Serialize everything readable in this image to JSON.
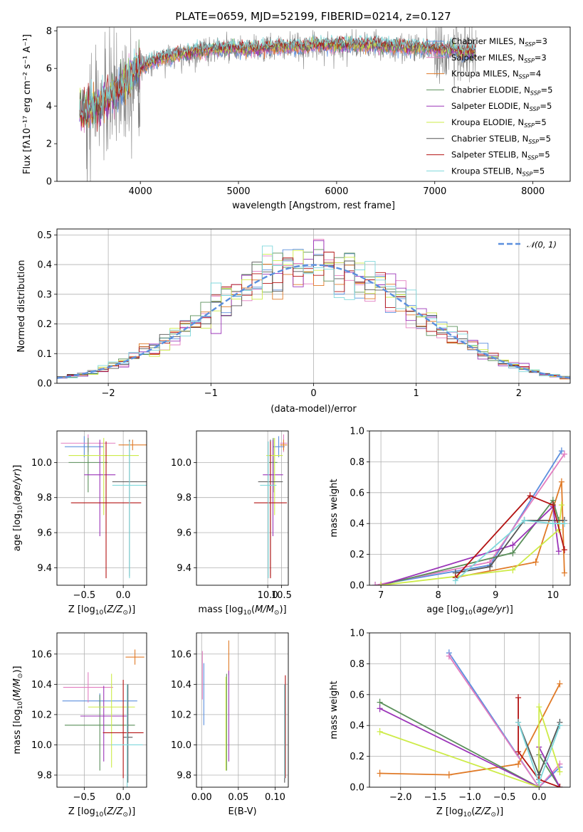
{
  "figure": {
    "title": "PLATE=0659, MJD=52199, FIBERID=0214, z=0.127"
  },
  "colors": {
    "chabrier_miles": "#5b8fde",
    "salpeter_miles": "#e27dc0",
    "kroupa_miles": "#e07a27",
    "chabrier_elodie": "#5a8f5a",
    "salpeter_elodie": "#9b35b8",
    "kroupa_elodie": "#cdeb47",
    "chabrier_stelib": "#555555",
    "salpeter_stelib": "#b31313",
    "kroupa_stelib": "#7fd8dc",
    "data_spectrum": "#808080",
    "normal_curve": "#5b8fde"
  },
  "chart_data": [
    {
      "id": "spectrum",
      "type": "line",
      "title": "PLATE=0659, MJD=52199, FIBERID=0214, z=0.127",
      "xlabel": "wavelength [Angstrom, rest frame]",
      "ylabel": "Flux [fλ10⁻¹⁷ erg cm⁻² s⁻¹ A⁻¹]",
      "xlim": [
        3150,
        8380
      ],
      "ylim": [
        0,
        8.2
      ],
      "xticks": [
        4000,
        5000,
        6000,
        7000,
        8000
      ],
      "yticks": [
        0,
        2,
        4,
        6,
        8
      ],
      "legend_position": "top-right",
      "legend": [
        {
          "label": "Chabrier MILES, N",
          "sub": "SSP",
          "eq": "=3"
        },
        {
          "label": "Salpeter MILES, N",
          "sub": "SSP",
          "eq": "=3"
        },
        {
          "label": "Kroupa MILES, N",
          "sub": "SSP",
          "eq": "=4"
        },
        {
          "label": "Chabrier ELODIE, N",
          "sub": "SSP",
          "eq": "=5"
        },
        {
          "label": "Salpeter ELODIE, N",
          "sub": "SSP",
          "eq": "=5"
        },
        {
          "label": "Kroupa ELODIE, N",
          "sub": "SSP",
          "eq": "=5"
        },
        {
          "label": "Chabrier STELIB, N",
          "sub": "SSP",
          "eq": "=5"
        },
        {
          "label": "Salpeter STELIB, N",
          "sub": "SSP",
          "eq": "=5"
        },
        {
          "label": "Kroupa STELIB, N",
          "sub": "SSP",
          "eq": "=5"
        }
      ],
      "continuum": {
        "x": [
          3380,
          3500,
          3600,
          3700,
          3800,
          3900,
          4000,
          4100,
          4200,
          4300,
          4400,
          4600,
          4800,
          5000,
          5200,
          5400,
          5600,
          5800,
          6000,
          6200,
          6400,
          6600,
          6800,
          7000,
          7200,
          7400
        ],
        "y": [
          3.5,
          3.8,
          4.0,
          4.4,
          5.0,
          5.6,
          6.0,
          6.3,
          6.5,
          6.6,
          6.7,
          6.9,
          7.0,
          7.0,
          7.0,
          7.1,
          7.1,
          7.2,
          7.2,
          7.2,
          7.2,
          7.1,
          7.1,
          7.0,
          6.9,
          6.8
        ]
      },
      "data_coverage": [
        3380,
        7420
      ]
    },
    {
      "id": "residual_histogram",
      "type": "line",
      "xlabel": "(data-model)/error",
      "ylabel": "Normed distribution",
      "xlim": [
        -2.5,
        2.5
      ],
      "ylim": [
        0,
        0.52
      ],
      "xticks": [
        -2,
        -1,
        0,
        1,
        2
      ],
      "yticks": [
        0.0,
        0.1,
        0.2,
        0.3,
        0.4,
        0.5
      ],
      "legend_position": "top-right",
      "legend_label": "𝒩(0, 1)",
      "bins": [
        -2.5,
        2.5,
        50
      ]
    },
    {
      "id": "age_vs_Z",
      "type": "scatter",
      "xlabel": "Z [log10(Z/Z⊙)]",
      "ylabel": "age [log10(age/yr)]",
      "xlim": [
        -0.85,
        0.3
      ],
      "ylim": [
        9.3,
        10.18
      ],
      "xticks": [
        -0.5,
        0.0
      ],
      "yticks": [
        9.4,
        9.6,
        9.8,
        10.0
      ],
      "points": [
        {
          "model": "chabrier_miles",
          "x": -0.5,
          "xerr": 0.25,
          "y": 10.09,
          "yerr": [
            0.06,
            0.06
          ]
        },
        {
          "model": "salpeter_miles",
          "x": -0.45,
          "xerr": 0.35,
          "y": 10.11,
          "yerr": [
            0.05,
            0.05
          ]
        },
        {
          "model": "kroupa_miles",
          "x": 0.12,
          "xerr": 0.18,
          "y": 10.1,
          "yerr": [
            0.03,
            0.03
          ]
        },
        {
          "model": "chabrier_elodie",
          "x": -0.45,
          "xerr": 0.25,
          "y": 10.0,
          "yerr": [
            0.17,
            0.14
          ]
        },
        {
          "model": "salpeter_elodie",
          "x": -0.3,
          "xerr": 0.2,
          "y": 9.93,
          "yerr": [
            0.35,
            0.2
          ]
        },
        {
          "model": "kroupa_elodie",
          "x": -0.25,
          "xerr": 0.45,
          "y": 10.04,
          "yerr": [
            0.34,
            0.1
          ]
        },
        {
          "model": "chabrier_stelib",
          "x": 0.08,
          "xerr": 0.22,
          "y": 9.89,
          "yerr": [
            0.54,
            0.24
          ]
        },
        {
          "model": "salpeter_stelib",
          "x": -0.22,
          "xerr": 0.45,
          "y": 9.77,
          "yerr": [
            0.43,
            0.35
          ]
        },
        {
          "model": "kroupa_stelib",
          "x": 0.08,
          "xerr": 0.22,
          "y": 9.87,
          "yerr": [
            0.53,
            0.25
          ]
        }
      ]
    },
    {
      "id": "age_vs_mass",
      "type": "scatter",
      "xlabel": "mass [log10(M/M⊙)]",
      "ylabel": "",
      "xlim": [
        7.4,
        10.75
      ],
      "ylim": [
        9.3,
        10.18
      ],
      "xticks": [
        8.0,
        9.0,
        10.0
      ],
      "xtick_labels": [
        "",
        "",
        "10.0"
      ],
      "xticks_visible": [
        10.0,
        10.5
      ],
      "yticks": [
        9.4,
        9.6,
        9.8,
        10.0
      ],
      "points": [
        {
          "model": "chabrier_miles",
          "x": 10.4,
          "xerr": 0.22,
          "y": 10.09,
          "yerr": [
            0.06,
            0.06
          ]
        },
        {
          "model": "salpeter_miles",
          "x": 10.58,
          "xerr": 0.13,
          "y": 10.11,
          "yerr": [
            0.05,
            0.05
          ]
        },
        {
          "model": "kroupa_miles",
          "x": 10.58,
          "xerr": 0.13,
          "y": 10.1,
          "yerr": [
            0.03,
            0.03
          ]
        },
        {
          "model": "chabrier_elodie",
          "x": 10.2,
          "xerr": 0.15,
          "y": 10.0,
          "yerr": [
            0.17,
            0.14
          ]
        },
        {
          "model": "salpeter_elodie",
          "x": 10.19,
          "xerr": 0.37,
          "y": 9.93,
          "yerr": [
            0.35,
            0.2
          ]
        },
        {
          "model": "kroupa_elodie",
          "x": 10.25,
          "xerr": 0.3,
          "y": 10.04,
          "yerr": [
            0.34,
            0.1
          ]
        },
        {
          "model": "chabrier_stelib",
          "x": 10.1,
          "xerr": 0.45,
          "y": 9.89,
          "yerr": [
            0.54,
            0.24
          ]
        },
        {
          "model": "salpeter_stelib",
          "x": 10.1,
          "xerr": 0.6,
          "y": 9.77,
          "yerr": [
            0.43,
            0.35
          ]
        },
        {
          "model": "kroupa_stelib",
          "x": 10.02,
          "xerr": 0.3,
          "y": 9.87,
          "yerr": [
            0.53,
            0.25
          ]
        }
      ]
    },
    {
      "id": "weight_vs_age",
      "type": "line",
      "xlabel": "age [log10(age/yr)]",
      "ylabel": "mass weight",
      "xlim": [
        6.8,
        10.3
      ],
      "ylim": [
        0,
        1.0
      ],
      "xticks": [
        7,
        8,
        9,
        10
      ],
      "yticks": [
        0.0,
        0.2,
        0.4,
        0.6,
        0.8,
        1.0
      ],
      "series": [
        {
          "model": "chabrier_miles",
          "x": [
            6.9,
            8.9,
            10.15
          ],
          "y": [
            0.0,
            0.13,
            0.87
          ]
        },
        {
          "model": "salpeter_miles",
          "x": [
            6.9,
            8.9,
            10.2
          ],
          "y": [
            0.0,
            0.15,
            0.85
          ]
        },
        {
          "model": "kroupa_miles",
          "x": [
            8.3,
            9.7,
            10.15,
            10.2
          ],
          "y": [
            0.05,
            0.15,
            0.67,
            0.08
          ]
        },
        {
          "model": "chabrier_elodie",
          "x": [
            7.0,
            9.3,
            10.0,
            10.1
          ],
          "y": [
            0.0,
            0.21,
            0.55,
            0.42
          ]
        },
        {
          "model": "salpeter_elodie",
          "x": [
            7.0,
            9.3,
            10.0,
            10.1
          ],
          "y": [
            0.0,
            0.26,
            0.51,
            0.22
          ]
        },
        {
          "model": "kroupa_elodie",
          "x": [
            7.0,
            9.3,
            10.1,
            10.15
          ],
          "y": [
            0.0,
            0.1,
            0.36,
            0.52
          ]
        },
        {
          "model": "chabrier_stelib",
          "x": [
            8.3,
            8.9,
            9.5,
            10.2
          ],
          "y": [
            0.08,
            0.12,
            0.42,
            0.42
          ]
        },
        {
          "model": "salpeter_stelib",
          "x": [
            8.3,
            9.6,
            10.0,
            10.2
          ],
          "y": [
            0.05,
            0.58,
            0.52,
            0.23
          ]
        },
        {
          "model": "kroupa_stelib",
          "x": [
            8.3,
            9.5,
            10.0,
            10.2
          ],
          "y": [
            0.03,
            0.42,
            0.4,
            0.4
          ]
        }
      ]
    },
    {
      "id": "mass_vs_Z",
      "type": "scatter",
      "xlabel": "Z [log10(Z/Z⊙)]",
      "ylabel": "mass [log10(M/M⊙)]",
      "xlim": [
        -0.85,
        0.3
      ],
      "ylim": [
        9.72,
        10.74
      ],
      "xticks": [
        -0.5,
        0.0
      ],
      "yticks": [
        9.8,
        10.0,
        10.2,
        10.4,
        10.6
      ],
      "points": [
        {
          "model": "chabrier_miles",
          "x": -0.3,
          "xerr": 0.48,
          "y": 10.29,
          "yerr": [
            0.05,
            0.05
          ]
        },
        {
          "model": "salpeter_miles",
          "x": -0.45,
          "xerr": 0.32,
          "y": 10.38,
          "yerr": [
            0.1,
            0.1
          ]
        },
        {
          "model": "kroupa_miles",
          "x": 0.15,
          "xerr": 0.12,
          "y": 10.58,
          "yerr": [
            0.05,
            0.05
          ]
        },
        {
          "model": "chabrier_elodie",
          "x": -0.3,
          "xerr": 0.45,
          "y": 10.13,
          "yerr": [
            0.3,
            0.2
          ]
        },
        {
          "model": "salpeter_elodie",
          "x": -0.25,
          "xerr": 0.3,
          "y": 10.19,
          "yerr": [
            0.3,
            0.2
          ]
        },
        {
          "model": "kroupa_elodie",
          "x": -0.15,
          "xerr": 0.3,
          "y": 10.25,
          "yerr": [
            0.4,
            0.22
          ]
        },
        {
          "model": "chabrier_stelib",
          "x": 0.06,
          "xerr": 0.06,
          "y": 10.05,
          "yerr": [
            0.3,
            0.35
          ]
        },
        {
          "model": "salpeter_stelib",
          "x": 0.0,
          "xerr": 0.26,
          "y": 10.08,
          "yerr": [
            0.3,
            0.35
          ]
        },
        {
          "model": "kroupa_stelib",
          "x": 0.05,
          "xerr": 0.2,
          "y": 10.0,
          "yerr": [
            0.3,
            0.4
          ]
        }
      ]
    },
    {
      "id": "mass_vs_EBV",
      "type": "scatter",
      "xlabel": "E(B-V)",
      "ylabel": "",
      "xlim": [
        -0.007,
        0.118
      ],
      "ylim": [
        9.72,
        10.74
      ],
      "xticks": [
        0.0,
        0.05,
        0.1
      ],
      "xtick_labels": [
        "0.00",
        "0.05",
        "0.10"
      ],
      "yticks": [
        9.8,
        10.0,
        10.2,
        10.4,
        10.6
      ],
      "points": [
        {
          "model": "chabrier_miles",
          "x": 0.003,
          "xerr": 0.0,
          "y": 10.33,
          "yerr": [
            0.2,
            0.21
          ]
        },
        {
          "model": "salpeter_miles",
          "x": 0.001,
          "xerr": 0.0,
          "y": 10.45,
          "yerr": [
            0.15,
            0.17
          ]
        },
        {
          "model": "kroupa_miles",
          "x": 0.037,
          "xerr": 0.0,
          "y": 10.58,
          "yerr": [
            0.12,
            0.11
          ]
        },
        {
          "model": "chabrier_elodie",
          "x": 0.034,
          "xerr": 0.0,
          "y": 10.13,
          "yerr": [
            0.3,
            0.34
          ]
        },
        {
          "model": "salpeter_elodie",
          "x": 0.037,
          "xerr": 0.0,
          "y": 10.19,
          "yerr": [
            0.3,
            0.3
          ]
        },
        {
          "model": "kroupa_elodie",
          "x": 0.033,
          "xerr": 0.0,
          "y": 10.25,
          "yerr": [
            0.42,
            0.2
          ]
        },
        {
          "model": "chabrier_stelib",
          "x": 0.113,
          "xerr": 0.0,
          "y": 10.05,
          "yerr": [
            0.3,
            0.35
          ]
        },
        {
          "model": "salpeter_stelib",
          "x": 0.114,
          "xerr": 0.0,
          "y": 10.08,
          "yerr": [
            0.3,
            0.38
          ]
        },
        {
          "model": "kroupa_stelib",
          "x": 0.113,
          "xerr": 0.0,
          "y": 10.0,
          "yerr": [
            0.22,
            0.4
          ]
        }
      ]
    },
    {
      "id": "weight_vs_Z",
      "type": "line",
      "xlabel": "Z [log10(Z/Z⊙)]",
      "ylabel": "mass weight",
      "xlim": [
        -2.45,
        0.45
      ],
      "ylim": [
        0,
        1.0
      ],
      "xticks": [
        -2.0,
        -1.5,
        -1.0,
        -0.5,
        0.0
      ],
      "yticks": [
        0.0,
        0.2,
        0.4,
        0.6,
        0.8,
        1.0
      ],
      "series": [
        {
          "model": "chabrier_miles",
          "x": [
            -1.3,
            0.0,
            0.3
          ],
          "y": [
            0.87,
            0.0,
            0.13
          ]
        },
        {
          "model": "salpeter_miles",
          "x": [
            -1.3,
            0.0,
            0.3
          ],
          "y": [
            0.85,
            0.0,
            0.15
          ]
        },
        {
          "model": "kroupa_miles",
          "x": [
            -2.3,
            -1.3,
            -0.3,
            0.3
          ],
          "y": [
            0.09,
            0.08,
            0.15,
            0.67
          ]
        },
        {
          "model": "chabrier_elodie",
          "x": [
            -2.3,
            0.0,
            0.0,
            0.3
          ],
          "y": [
            0.55,
            0.0,
            0.21,
            0.0
          ]
        },
        {
          "model": "salpeter_elodie",
          "x": [
            -2.3,
            0.0,
            0.0,
            0.3
          ],
          "y": [
            0.51,
            0.0,
            0.26,
            0.0
          ]
        },
        {
          "model": "kroupa_elodie",
          "x": [
            -2.3,
            0.0,
            0.0,
            0.3
          ],
          "y": [
            0.36,
            0.0,
            0.52,
            0.1
          ]
        },
        {
          "model": "chabrier_stelib",
          "x": [
            -0.3,
            0.0,
            0.3
          ],
          "y": [
            0.42,
            0.08,
            0.42
          ]
        },
        {
          "model": "salpeter_stelib",
          "x": [
            -0.3,
            -0.3,
            0.0,
            0.3
          ],
          "y": [
            0.58,
            0.23,
            0.05,
            0.0
          ]
        },
        {
          "model": "kroupa_stelib",
          "x": [
            -0.3,
            0.0,
            0.3
          ],
          "y": [
            0.42,
            0.03,
            0.4
          ]
        }
      ]
    }
  ]
}
